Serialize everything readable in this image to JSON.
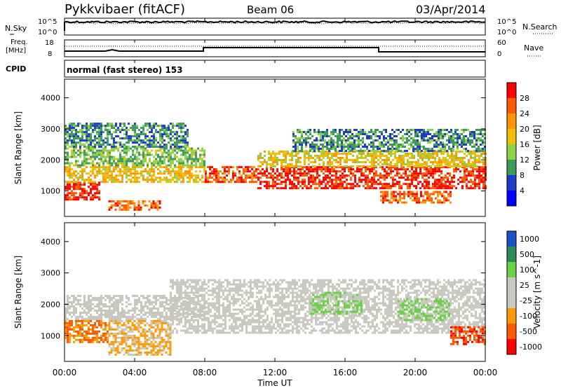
{
  "header": {
    "radar": "Pykkvibaer (fitACF)",
    "beam": "Beam 06",
    "date": "03/Apr/2014"
  },
  "strips": {
    "nsky_label": "N.Sky",
    "nsky_ticks": [
      "10^5",
      "10^0"
    ],
    "nsearch_label": "N.Search",
    "nsearch_ticks": [
      "10^5",
      "10^0"
    ],
    "freq_label_1": "Freq.",
    "freq_label_2": "[MHz]",
    "freq_ticks": [
      "18",
      "8"
    ],
    "nave_label": "Nave",
    "nave_ticks": [
      "60",
      "0"
    ],
    "cpid_label": "CPID",
    "cpid_value": "normal (fast stereo) 153"
  },
  "panels": {
    "y_label": "Slant Range [km]",
    "y_ticks": [
      "4000",
      "3000",
      "2000",
      "1000"
    ],
    "x_ticks": [
      "00:00",
      "04:00",
      "08:00",
      "12:00",
      "16:00",
      "20:00",
      "00:00"
    ],
    "x_label": "Time UT"
  },
  "power_scale": {
    "label": "Power [dB]",
    "ticks": [
      "28",
      "24",
      "20",
      "16",
      "12",
      "8",
      "4"
    ],
    "colors": [
      "#ff0000",
      "#ff5a00",
      "#ff9600",
      "#f0c000",
      "#8ed24a",
      "#3d9a5c",
      "#1e3cc8",
      "#0000ff"
    ]
  },
  "velocity_scale": {
    "label": "Velocity [m s^-1]",
    "ticks": [
      "1000",
      "500",
      "100",
      "25",
      "-25",
      "-100",
      "-500",
      "-1000"
    ],
    "colors": [
      "#1e50c8",
      "#2c8a5a",
      "#6ad045",
      "#c8c8c0",
      "#c8c8c0",
      "#ff9a00",
      "#ff5a00",
      "#ff0000"
    ]
  },
  "chart_data": [
    {
      "type": "heatmap",
      "title": "Power",
      "xlabel": "Time UT",
      "ylabel": "Slant Range [km]",
      "xlim_hours": [
        0,
        24
      ],
      "ylim_km": [
        180,
        4600
      ],
      "colorbar": {
        "label": "Power [dB]",
        "range": [
          0,
          30
        ]
      },
      "bands": [
        {
          "t_start": 0.0,
          "t_end": 2.0,
          "range_low": 700,
          "range_high": 1300,
          "value": 27
        },
        {
          "t_start": 0.0,
          "t_end": 8.0,
          "range_low": 1300,
          "range_high": 1800,
          "value": 18
        },
        {
          "t_start": 0.0,
          "t_end": 8.0,
          "range_low": 1800,
          "range_high": 2400,
          "value": 12
        },
        {
          "t_start": 0.0,
          "t_end": 7.0,
          "range_low": 2400,
          "range_high": 3200,
          "value": 9
        },
        {
          "t_start": 2.5,
          "t_end": 5.5,
          "range_low": 400,
          "range_high": 700,
          "value": 24
        },
        {
          "t_start": 8.0,
          "t_end": 11.0,
          "range_low": 1300,
          "range_high": 1800,
          "value": 25
        },
        {
          "t_start": 11.0,
          "t_end": 24.0,
          "range_low": 1100,
          "range_high": 1800,
          "value": 27
        },
        {
          "t_start": 11.0,
          "t_end": 24.0,
          "range_low": 1800,
          "range_high": 2300,
          "value": 17
        },
        {
          "t_start": 13.0,
          "t_end": 24.0,
          "range_low": 2300,
          "range_high": 3000,
          "value": 9
        },
        {
          "t_start": 18.0,
          "t_end": 22.0,
          "range_low": 600,
          "range_high": 1000,
          "value": 24
        }
      ]
    },
    {
      "type": "heatmap",
      "title": "Velocity",
      "xlabel": "Time UT",
      "ylabel": "Slant Range [km]",
      "xlim_hours": [
        0,
        24
      ],
      "ylim_km": [
        180,
        4600
      ],
      "colorbar": {
        "label": "Velocity [m s^-1]",
        "range": [
          -1000,
          1000
        ]
      },
      "bands": [
        {
          "t_start": 0.0,
          "t_end": 2.5,
          "range_low": 800,
          "range_high": 1500,
          "value": -500
        },
        {
          "t_start": 0.0,
          "t_end": 8.0,
          "range_low": 1500,
          "range_high": 2300,
          "value": 0
        },
        {
          "t_start": 2.5,
          "t_end": 6.0,
          "range_low": 400,
          "range_high": 1500,
          "value": -300
        },
        {
          "t_start": 6.0,
          "t_end": 24.0,
          "range_low": 1100,
          "range_high": 2800,
          "value": 0
        },
        {
          "t_start": 14.0,
          "t_end": 17.0,
          "range_low": 1700,
          "range_high": 2400,
          "value": 300
        },
        {
          "t_start": 19.0,
          "t_end": 22.0,
          "range_low": 1500,
          "range_high": 2200,
          "value": 300
        },
        {
          "t_start": 22.0,
          "t_end": 24.0,
          "range_low": 700,
          "range_high": 1300,
          "value": -700
        }
      ]
    }
  ]
}
